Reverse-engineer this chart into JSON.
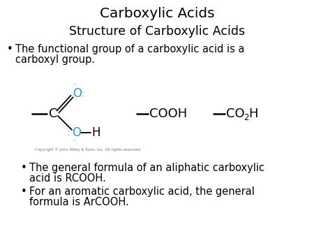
{
  "title": "Carboxylic Acids",
  "subtitle": "Structure of Carboxylic Acids",
  "bullet1_line1": "The functional group of a carboxylic acid is a",
  "bullet1_line2": "carboxyl group.",
  "bullet2_line1": "The general formula of an aliphatic carboxylic",
  "bullet2_line2": "acid is RCOOH.",
  "bullet3_line1": "For an aromatic carboxylic acid, the general",
  "bullet3_line2": "formula is ArCOOH.",
  "copyright": "Copyright © John Wiley & Sons, Inc. All rights reserved.",
  "bg_color": "#ffffff",
  "text_color": "#000000",
  "blue_color": "#3399bb",
  "title_fontsize": 14.5,
  "subtitle_fontsize": 12.5,
  "body_fontsize": 10.5
}
